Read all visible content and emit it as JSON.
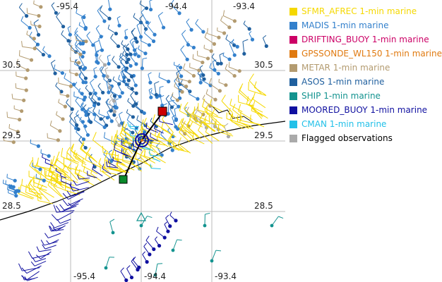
{
  "map": {
    "lon_ticks_top": [
      "-95.4",
      "-94.4",
      "-93.4"
    ],
    "lon_ticks_bottom": [
      "-95.4",
      "-94.4",
      "-93.4"
    ],
    "lat_ticks_left": [
      "30.5",
      "29.5",
      "28.5"
    ],
    "lat_ticks_right": [
      "30.5",
      "29.5",
      "28.5"
    ]
  },
  "legend": {
    "items": [
      {
        "label": "SFMR_AFREC 1-min marine",
        "color": "#f5d800"
      },
      {
        "label": "MADIS 1-min marine",
        "color": "#3380cc"
      },
      {
        "label": "DRIFTING_BUOY 1-min marine",
        "color": "#cc0066"
      },
      {
        "label": "GPSSONDE_WL150 1-min marine",
        "color": "#e07a10"
      },
      {
        "label": "METAR 1-min marine",
        "color": "#b39b70"
      },
      {
        "label": "ASOS 1-min marine",
        "color": "#1f5f9e"
      },
      {
        "label": "SHIP 1-min marine",
        "color": "#13938f"
      },
      {
        "label": "MOORED_BUOY 1-min marine",
        "color": "#1010a0"
      },
      {
        "label": "CMAN 1-min marine",
        "color": "#22c0e8"
      },
      {
        "label": "Flagged observations",
        "color": "#aaaaaa"
      }
    ]
  }
}
